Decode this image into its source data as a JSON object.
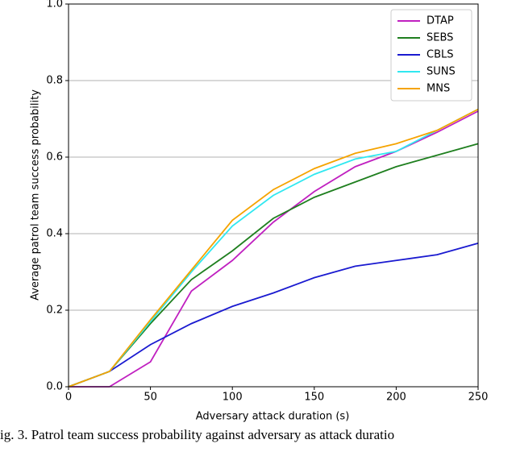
{
  "chart_data": {
    "type": "line",
    "xlabel": "Adversary attack duration (s)",
    "ylabel": "Average patrol team success probability",
    "caption": "ig. 3.  Patrol team success probability against adversary as attack duratio",
    "x": [
      0,
      25,
      50,
      75,
      100,
      125,
      150,
      175,
      200,
      225,
      250
    ],
    "series": [
      {
        "name": "DTAP",
        "color": "#c020c0",
        "values": [
          0,
          0,
          0.065,
          0.25,
          0.33,
          0.43,
          0.51,
          0.575,
          0.615,
          0.665,
          0.72
        ]
      },
      {
        "name": "SEBS",
        "color": "#1f7f1f",
        "values": [
          0,
          0.04,
          0.165,
          0.28,
          0.355,
          0.44,
          0.495,
          0.535,
          0.575,
          0.605,
          0.635
        ]
      },
      {
        "name": "CBLS",
        "color": "#1a1ad0",
        "values": [
          0,
          0.04,
          0.11,
          0.165,
          0.21,
          0.245,
          0.285,
          0.315,
          0.33,
          0.345,
          0.375
        ]
      },
      {
        "name": "SUNS",
        "color": "#30e8f0",
        "values": [
          0,
          0.04,
          0.17,
          0.3,
          0.42,
          0.5,
          0.555,
          0.595,
          0.615,
          0.67,
          0.725
        ]
      },
      {
        "name": "MNS",
        "color": "#f5a300",
        "values": [
          0,
          0.04,
          0.175,
          0.305,
          0.435,
          0.515,
          0.57,
          0.61,
          0.635,
          0.67,
          0.725
        ]
      }
    ],
    "xlim": [
      0,
      250
    ],
    "xticks": [
      0,
      50,
      100,
      150,
      200,
      250
    ],
    "ylim": [
      0,
      1
    ],
    "yticks": [
      {
        "value": 0,
        "label": "0.0"
      },
      {
        "value": 0.2,
        "label": "0.2"
      },
      {
        "value": 0.4,
        "label": "0.4"
      },
      {
        "value": 0.6,
        "label": "0.6"
      },
      {
        "value": 0.8,
        "label": "0.8"
      },
      {
        "value": 1,
        "label": "1.0"
      }
    ],
    "grid": true,
    "legend": "upper right"
  }
}
